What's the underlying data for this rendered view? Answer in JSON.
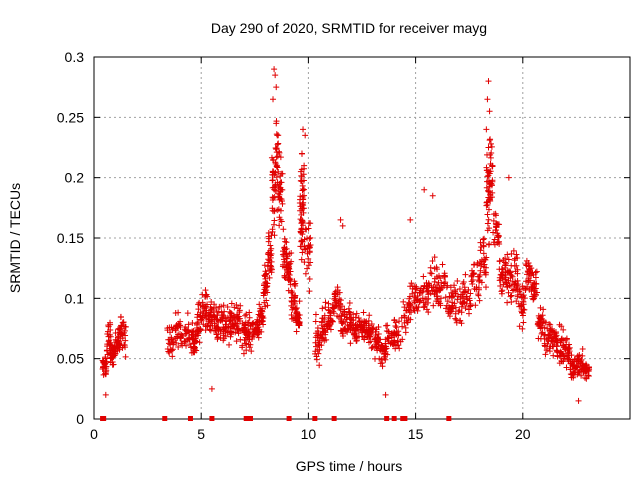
{
  "chart_data": {
    "type": "scatter",
    "title": "Day 290 of 2020, SRMTID for receiver mayg",
    "xlabel": "GPS time / hours",
    "ylabel": "SRMTID / TECUs",
    "xlim": [
      0,
      25
    ],
    "ylim": [
      0,
      0.3
    ],
    "x_ticks": [
      {
        "value": 0,
        "label": "0"
      },
      {
        "value": 5,
        "label": "5"
      },
      {
        "value": 10,
        "label": "10"
      },
      {
        "value": 15,
        "label": "15"
      },
      {
        "value": 20,
        "label": "20"
      }
    ],
    "y_ticks": [
      {
        "value": 0,
        "label": "0"
      },
      {
        "value": 0.05,
        "label": "0.05"
      },
      {
        "value": 0.1,
        "label": "0.1"
      },
      {
        "value": 0.15,
        "label": "0.15"
      },
      {
        "value": 0.2,
        "label": "0.2"
      },
      {
        "value": 0.25,
        "label": "0.25"
      },
      {
        "value": 0.3,
        "label": "0.3"
      }
    ],
    "grid": true,
    "marker": "+",
    "color": "#e00000",
    "envelope": [
      [
        0.4,
        0.03,
        0.06
      ],
      [
        0.6,
        0.04,
        0.09
      ],
      [
        0.8,
        0.04,
        0.07
      ],
      [
        1.0,
        0.05,
        0.08
      ],
      [
        1.2,
        0.05,
        0.09
      ],
      [
        3.4,
        0.05,
        0.08
      ],
      [
        3.8,
        0.05,
        0.09
      ],
      [
        4.2,
        0.05,
        0.09
      ],
      [
        4.6,
        0.05,
        0.08
      ],
      [
        4.8,
        0.06,
        0.1
      ],
      [
        5.0,
        0.07,
        0.11
      ],
      [
        5.3,
        0.07,
        0.1
      ],
      [
        5.6,
        0.06,
        0.1
      ],
      [
        5.9,
        0.06,
        0.1
      ],
      [
        6.2,
        0.06,
        0.1
      ],
      [
        6.5,
        0.06,
        0.1
      ],
      [
        6.8,
        0.05,
        0.1
      ],
      [
        7.1,
        0.05,
        0.09
      ],
      [
        7.4,
        0.06,
        0.09
      ],
      [
        7.7,
        0.07,
        0.1
      ],
      [
        7.9,
        0.09,
        0.13
      ],
      [
        8.1,
        0.11,
        0.16
      ],
      [
        8.3,
        0.14,
        0.23
      ],
      [
        8.45,
        0.16,
        0.27
      ],
      [
        8.6,
        0.14,
        0.24
      ],
      [
        8.8,
        0.11,
        0.16
      ],
      [
        9.0,
        0.1,
        0.14
      ],
      [
        9.2,
        0.08,
        0.12
      ],
      [
        9.4,
        0.07,
        0.1
      ],
      [
        9.6,
        0.12,
        0.22
      ],
      [
        9.7,
        0.13,
        0.23
      ],
      [
        9.8,
        0.1,
        0.18
      ],
      [
        10.3,
        0.04,
        0.09
      ],
      [
        10.6,
        0.06,
        0.1
      ],
      [
        10.9,
        0.07,
        0.1
      ],
      [
        11.2,
        0.08,
        0.12
      ],
      [
        11.5,
        0.06,
        0.1
      ],
      [
        11.8,
        0.06,
        0.1
      ],
      [
        12.1,
        0.06,
        0.09
      ],
      [
        12.4,
        0.06,
        0.09
      ],
      [
        12.7,
        0.05,
        0.09
      ],
      [
        13.0,
        0.05,
        0.08
      ],
      [
        13.3,
        0.04,
        0.07
      ],
      [
        13.6,
        0.05,
        0.08
      ],
      [
        14.0,
        0.05,
        0.09
      ],
      [
        14.4,
        0.07,
        0.11
      ],
      [
        14.8,
        0.08,
        0.12
      ],
      [
        15.2,
        0.08,
        0.13
      ],
      [
        15.6,
        0.09,
        0.14
      ],
      [
        16.0,
        0.09,
        0.13
      ],
      [
        16.4,
        0.08,
        0.12
      ],
      [
        16.8,
        0.07,
        0.12
      ],
      [
        17.2,
        0.08,
        0.12
      ],
      [
        17.6,
        0.09,
        0.14
      ],
      [
        18.0,
        0.1,
        0.16
      ],
      [
        18.3,
        0.14,
        0.23
      ],
      [
        18.45,
        0.16,
        0.25
      ],
      [
        18.6,
        0.13,
        0.18
      ],
      [
        18.9,
        0.1,
        0.14
      ],
      [
        19.2,
        0.09,
        0.14
      ],
      [
        19.5,
        0.09,
        0.15
      ],
      [
        19.8,
        0.07,
        0.12
      ],
      [
        20.1,
        0.1,
        0.14
      ],
      [
        20.4,
        0.09,
        0.13
      ],
      [
        20.7,
        0.06,
        0.1
      ],
      [
        21.0,
        0.05,
        0.09
      ],
      [
        21.3,
        0.05,
        0.08
      ],
      [
        21.6,
        0.04,
        0.08
      ],
      [
        21.9,
        0.04,
        0.07
      ],
      [
        22.2,
        0.03,
        0.06
      ],
      [
        22.5,
        0.03,
        0.06
      ],
      [
        22.8,
        0.03,
        0.05
      ]
    ],
    "notable_points": [
      [
        8.4,
        0.29
      ],
      [
        8.45,
        0.285
      ],
      [
        8.5,
        0.275
      ],
      [
        8.35,
        0.265
      ],
      [
        8.5,
        0.245
      ],
      [
        8.55,
        0.235
      ],
      [
        9.75,
        0.24
      ],
      [
        9.85,
        0.235
      ],
      [
        9.7,
        0.22
      ],
      [
        9.8,
        0.21
      ],
      [
        9.65,
        0.205
      ],
      [
        18.4,
        0.28
      ],
      [
        18.35,
        0.265
      ],
      [
        18.45,
        0.255
      ],
      [
        18.3,
        0.24
      ],
      [
        18.4,
        0.225
      ],
      [
        19.35,
        0.2
      ],
      [
        15.4,
        0.19
      ],
      [
        15.8,
        0.185
      ],
      [
        11.5,
        0.165
      ],
      [
        11.6,
        0.16
      ],
      [
        14.75,
        0.165
      ],
      [
        13.6,
        0.02
      ],
      [
        22.6,
        0.015
      ],
      [
        0.55,
        0.02
      ],
      [
        5.5,
        0.025
      ]
    ],
    "baseline_x": [
      0.4,
      0.45,
      3.3,
      4.5,
      5.5,
      7.1,
      7.2,
      7.3,
      9.1,
      10.3,
      11.2,
      13.65,
      14.0,
      14.4,
      14.5,
      16.55
    ]
  }
}
